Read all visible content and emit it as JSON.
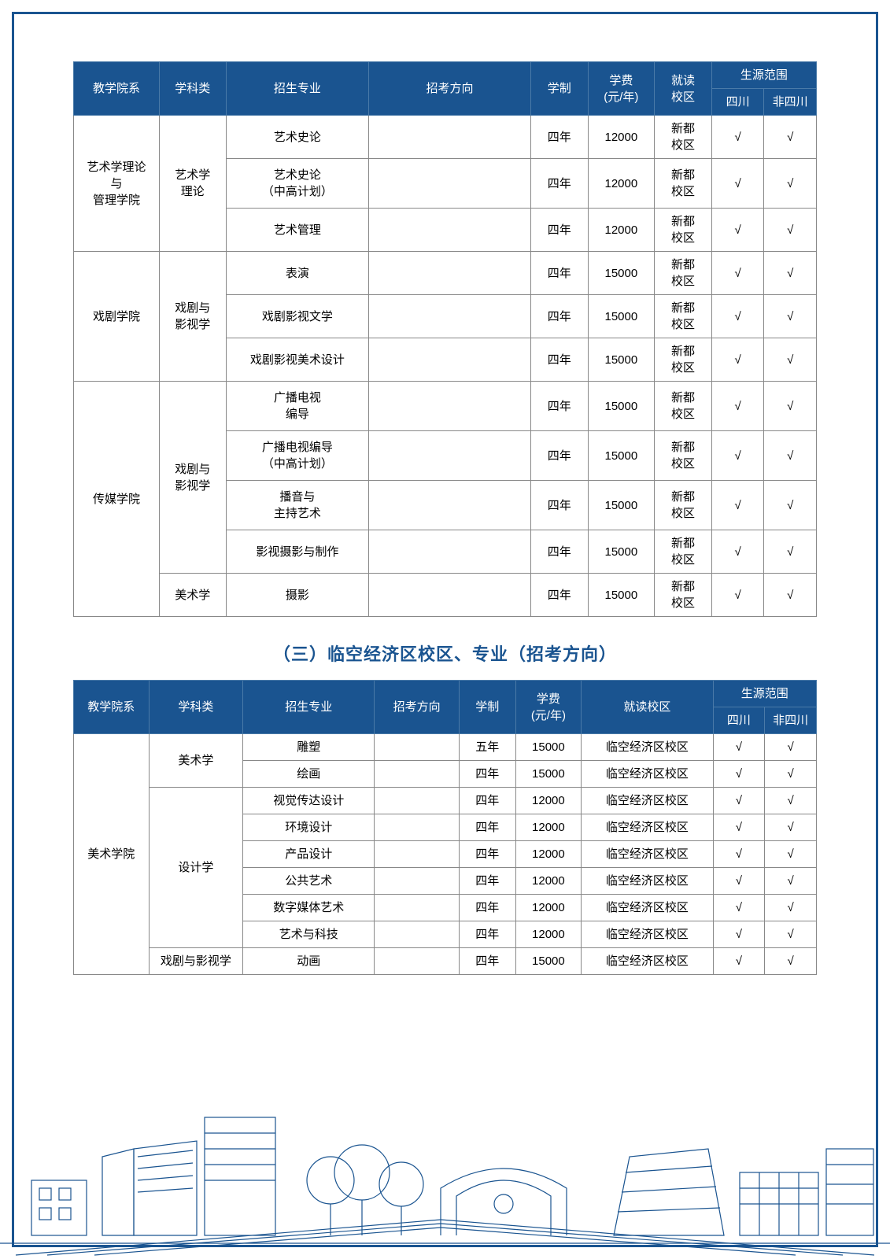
{
  "colors": {
    "primary": "#1a5490",
    "header_border": "#4a7aa8",
    "cell_border": "#888888",
    "text": "#000000",
    "bg": "#ffffff"
  },
  "check_mark": "√",
  "table1": {
    "headers": {
      "dept": "教学院系",
      "category": "学科类",
      "major": "招生专业",
      "direction": "招考方向",
      "duration": "学制",
      "tuition": "学费\n(元/年)",
      "campus": "就读\n校区",
      "scope": "生源范围",
      "sichuan": "四川",
      "non_sichuan": "非四川"
    },
    "rows": [
      {
        "dept": "艺术学理论\n与\n管理学院",
        "dept_rows": 3,
        "category": "艺术学\n理论",
        "cat_rows": 3,
        "major": "艺术史论",
        "direction": "",
        "duration": "四年",
        "tuition": "12000",
        "campus": "新都\n校区",
        "sc": "√",
        "nsc": "√"
      },
      {
        "major": "艺术史论\n（中高计划）",
        "direction": "",
        "duration": "四年",
        "tuition": "12000",
        "campus": "新都\n校区",
        "sc": "√",
        "nsc": "√"
      },
      {
        "major": "艺术管理",
        "direction": "",
        "duration": "四年",
        "tuition": "12000",
        "campus": "新都\n校区",
        "sc": "√",
        "nsc": "√"
      },
      {
        "dept": "戏剧学院",
        "dept_rows": 3,
        "category": "戏剧与\n影视学",
        "cat_rows": 3,
        "major": "表演",
        "direction": "",
        "duration": "四年",
        "tuition": "15000",
        "campus": "新都\n校区",
        "sc": "√",
        "nsc": "√"
      },
      {
        "major": "戏剧影视文学",
        "direction": "",
        "duration": "四年",
        "tuition": "15000",
        "campus": "新都\n校区",
        "sc": "√",
        "nsc": "√"
      },
      {
        "major": "戏剧影视美术设计",
        "direction": "",
        "duration": "四年",
        "tuition": "15000",
        "campus": "新都\n校区",
        "sc": "√",
        "nsc": "√"
      },
      {
        "dept": "传媒学院",
        "dept_rows": 5,
        "category": "戏剧与\n影视学",
        "cat_rows": 4,
        "major": "广播电视\n编导",
        "direction": "",
        "duration": "四年",
        "tuition": "15000",
        "campus": "新都\n校区",
        "sc": "√",
        "nsc": "√"
      },
      {
        "major": "广播电视编导\n（中高计划）",
        "direction": "",
        "duration": "四年",
        "tuition": "15000",
        "campus": "新都\n校区",
        "sc": "√",
        "nsc": "√"
      },
      {
        "major": "播音与\n主持艺术",
        "direction": "",
        "duration": "四年",
        "tuition": "15000",
        "campus": "新都\n校区",
        "sc": "√",
        "nsc": "√"
      },
      {
        "major": "影视摄影与制作",
        "direction": "",
        "duration": "四年",
        "tuition": "15000",
        "campus": "新都\n校区",
        "sc": "√",
        "nsc": "√"
      },
      {
        "category": "美术学",
        "cat_rows": 1,
        "major": "摄影",
        "direction": "",
        "duration": "四年",
        "tuition": "15000",
        "campus": "新都\n校区",
        "sc": "√",
        "nsc": "√"
      }
    ]
  },
  "section_title": "（三）临空经济区校区、专业（招考方向）",
  "table2": {
    "headers": {
      "dept": "教学院系",
      "category": "学科类",
      "major": "招生专业",
      "direction": "招考方向",
      "duration": "学制",
      "tuition": "学费\n(元/年)",
      "campus": "就读校区",
      "scope": "生源范围",
      "sichuan": "四川",
      "non_sichuan": "非四川"
    },
    "rows": [
      {
        "dept": "美术学院",
        "dept_rows": 9,
        "category": "美术学",
        "cat_rows": 2,
        "major": "雕塑",
        "direction": "",
        "duration": "五年",
        "tuition": "15000",
        "campus": "临空经济区校区",
        "sc": "√",
        "nsc": "√"
      },
      {
        "major": "绘画",
        "direction": "",
        "duration": "四年",
        "tuition": "15000",
        "campus": "临空经济区校区",
        "sc": "√",
        "nsc": "√"
      },
      {
        "category": "设计学",
        "cat_rows": 6,
        "major": "视觉传达设计",
        "direction": "",
        "duration": "四年",
        "tuition": "12000",
        "campus": "临空经济区校区",
        "sc": "√",
        "nsc": "√"
      },
      {
        "major": "环境设计",
        "direction": "",
        "duration": "四年",
        "tuition": "12000",
        "campus": "临空经济区校区",
        "sc": "√",
        "nsc": "√"
      },
      {
        "major": "产品设计",
        "direction": "",
        "duration": "四年",
        "tuition": "12000",
        "campus": "临空经济区校区",
        "sc": "√",
        "nsc": "√"
      },
      {
        "major": "公共艺术",
        "direction": "",
        "duration": "四年",
        "tuition": "12000",
        "campus": "临空经济区校区",
        "sc": "√",
        "nsc": "√"
      },
      {
        "major": "数字媒体艺术",
        "direction": "",
        "duration": "四年",
        "tuition": "12000",
        "campus": "临空经济区校区",
        "sc": "√",
        "nsc": "√"
      },
      {
        "major": "艺术与科技",
        "direction": "",
        "duration": "四年",
        "tuition": "12000",
        "campus": "临空经济区校区",
        "sc": "√",
        "nsc": "√"
      },
      {
        "category": "戏剧与影视学",
        "cat_rows": 1,
        "major": "动画",
        "direction": "",
        "duration": "四年",
        "tuition": "15000",
        "campus": "临空经济区校区",
        "sc": "√",
        "nsc": "√"
      }
    ]
  }
}
